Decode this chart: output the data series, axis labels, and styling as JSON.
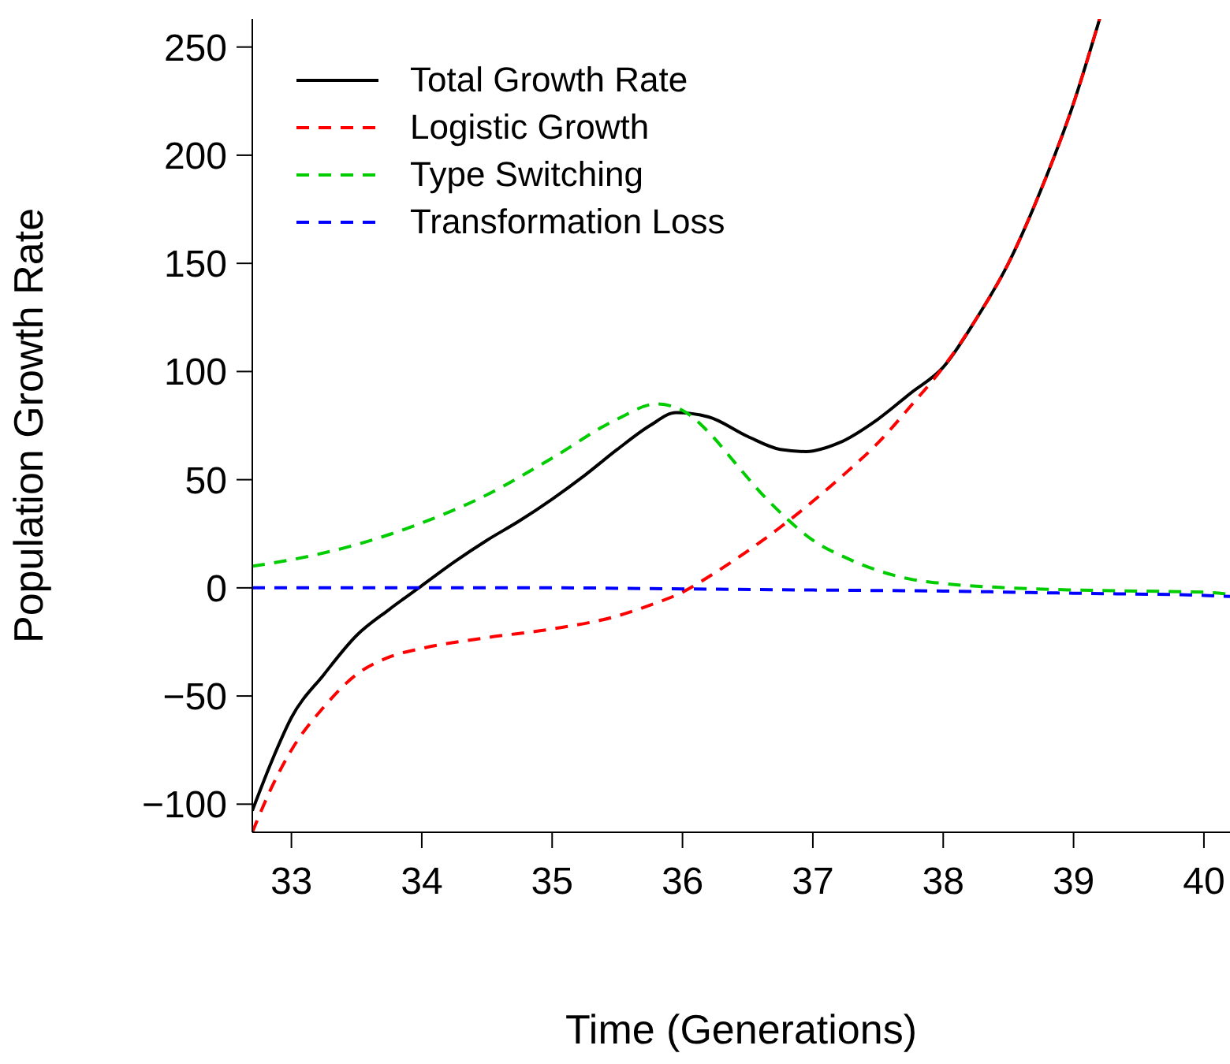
{
  "chart_data": {
    "type": "line",
    "xlabel": "Time (Generations)",
    "ylabel": "Population Growth Rate",
    "xlim": [
      32.7,
      40.2
    ],
    "ylim": [
      -113,
      263
    ],
    "xticks": [
      33,
      34,
      35,
      36,
      37,
      38,
      39,
      40
    ],
    "yticks": [
      -100,
      -50,
      0,
      50,
      100,
      150,
      200,
      250
    ],
    "legend": "top left",
    "marker": "none",
    "series": [
      {
        "name": "Total Growth Rate",
        "color": "#000000",
        "line_style": "solid",
        "x": [
          32.7,
          32.85,
          33,
          33.25,
          33.5,
          33.75,
          34,
          34.25,
          34.5,
          34.75,
          35,
          35.25,
          35.5,
          35.75,
          35.95,
          36.2,
          36.5,
          36.75,
          36.95,
          37.2,
          37.5,
          37.75,
          38,
          38.25,
          38.5,
          38.75,
          39,
          39.2
        ],
        "values": [
          -103,
          -80,
          -60,
          -40,
          -22,
          -10,
          1,
          12,
          22,
          31,
          41,
          52,
          64,
          75,
          81,
          79,
          70,
          64,
          63,
          67,
          78,
          90,
          102,
          124,
          150,
          184,
          224,
          263
        ]
      },
      {
        "name": "Logistic Growth",
        "color": "#ff0000",
        "line_style": "dashed",
        "x": [
          32.7,
          32.85,
          33,
          33.25,
          33.5,
          33.75,
          34,
          34.5,
          35,
          35.5,
          35.75,
          36,
          36.25,
          36.5,
          36.75,
          37,
          37.25,
          37.5,
          37.75,
          38,
          38.25,
          38.5,
          38.75,
          39,
          39.2
        ],
        "values": [
          -113,
          -92,
          -75,
          -55,
          -40,
          -32,
          -28,
          -23,
          -19,
          -13,
          -8,
          -2,
          7,
          17,
          28,
          40,
          53,
          67,
          84,
          102,
          124,
          150,
          184,
          224,
          263
        ]
      },
      {
        "name": "Type Switching",
        "color": "#00cc00",
        "line_style": "dashed",
        "x": [
          32.7,
          33,
          33.5,
          34,
          34.5,
          35,
          35.5,
          35.8,
          36,
          36.2,
          36.4,
          36.6,
          36.8,
          37,
          37.25,
          37.5,
          37.75,
          38,
          38.5,
          39,
          39.5,
          40,
          40.2
        ],
        "values": [
          10,
          13,
          20,
          30,
          43,
          60,
          78,
          85,
          82,
          72,
          58,
          44,
          32,
          22,
          14,
          8,
          4,
          2,
          0,
          -1,
          -1.5,
          -2,
          -3
        ]
      },
      {
        "name": "Transformation Loss",
        "color": "#0000ff",
        "line_style": "dashed",
        "x": [
          32.7,
          34,
          35,
          36,
          37,
          38,
          39,
          40,
          40.2
        ],
        "values": [
          0,
          0,
          0,
          -0.5,
          -1,
          -1.5,
          -2.5,
          -3.5,
          -4
        ]
      }
    ]
  }
}
